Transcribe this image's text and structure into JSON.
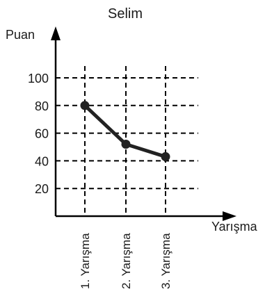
{
  "chart_data": {
    "type": "line",
    "title": "Selim",
    "ylabel": "Puan",
    "xlabel": "Yarışma",
    "categories": [
      "1. Yarışma",
      "2. Yarışma",
      "3. Yarışma"
    ],
    "y_ticks": [
      "20",
      "40",
      "60",
      "80",
      "100"
    ],
    "ylim": [
      0,
      110
    ],
    "grid": true,
    "series": [
      {
        "values": [
          80,
          52,
          43
        ],
        "color": "#222222"
      }
    ]
  }
}
